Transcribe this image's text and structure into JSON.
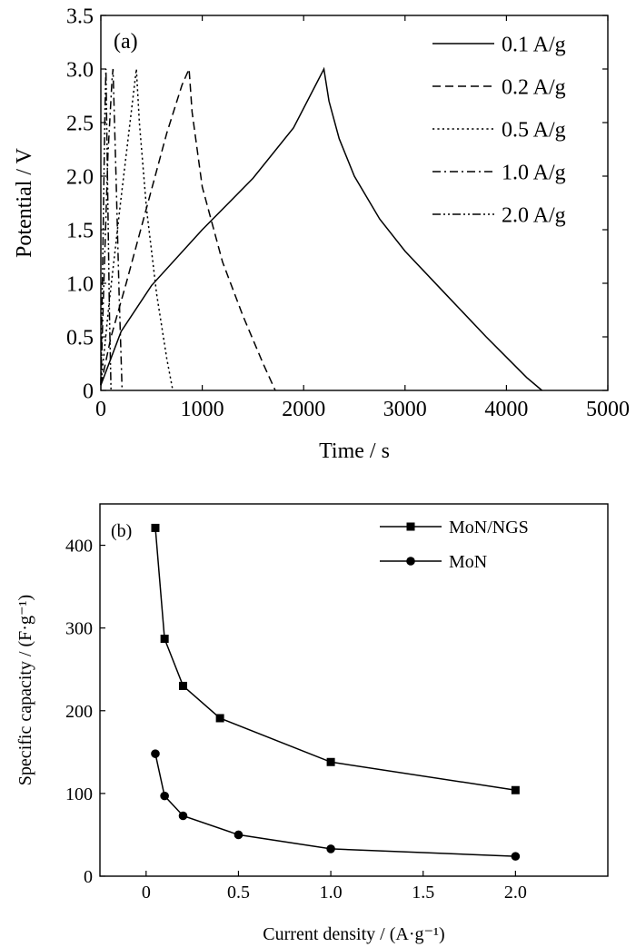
{
  "chart_data": [
    {
      "type": "line",
      "panel_label": "(a)",
      "xlabel": "Time / s",
      "ylabel": "Potential / V",
      "xlim": [
        0,
        5000
      ],
      "ylim": [
        0,
        3.5
      ],
      "x_ticks": [
        "0",
        "1000",
        "2000",
        "3000",
        "4000",
        "5000"
      ],
      "y_ticks": [
        "0",
        "0.5",
        "1.0",
        "1.5",
        "2.0",
        "2.5",
        "3.0",
        "3.5"
      ],
      "legend_position": "top-right",
      "series": [
        {
          "name": "0.1 A/g",
          "dash": "solid",
          "x": [
            0,
            200,
            500,
            1000,
            1500,
            1900,
            2200,
            2250,
            2350,
            2500,
            2750,
            3000,
            3400,
            3800,
            4200,
            4350
          ],
          "y": [
            0.05,
            0.55,
            0.98,
            1.5,
            1.98,
            2.45,
            3.0,
            2.7,
            2.35,
            2.0,
            1.6,
            1.3,
            0.9,
            0.5,
            0.12,
            0.0
          ]
        },
        {
          "name": "0.2 A/g",
          "dash": "dashed",
          "x": [
            0,
            100,
            250,
            450,
            650,
            800,
            870,
            900,
            1000,
            1200,
            1400,
            1600,
            1720
          ],
          "y": [
            0.05,
            0.5,
            1.0,
            1.7,
            2.4,
            2.85,
            3.0,
            2.6,
            1.9,
            1.2,
            0.7,
            0.25,
            0.0
          ]
        },
        {
          "name": "0.5 A/g",
          "dash": "dotted",
          "x": [
            0,
            80,
            200,
            300,
            350,
            380,
            450,
            550,
            650,
            710
          ],
          "y": [
            0.05,
            0.8,
            1.8,
            2.6,
            3.0,
            2.5,
            1.7,
            0.9,
            0.3,
            0.0
          ]
        },
        {
          "name": "1.0 A/g",
          "dash": "dash-dot",
          "x": [
            0,
            30,
            70,
            110,
            120,
            150,
            180,
            210
          ],
          "y": [
            0.05,
            1.0,
            2.2,
            2.9,
            3.0,
            2.0,
            0.9,
            0.0
          ]
        },
        {
          "name": "2.0 A/g",
          "dash": "dash-dot-dot",
          "x": [
            0,
            20,
            40,
            50,
            55,
            70,
            85,
            100
          ],
          "y": [
            0.05,
            1.3,
            2.6,
            3.0,
            2.7,
            1.7,
            0.7,
            0.0
          ]
        }
      ]
    },
    {
      "type": "line",
      "panel_label": "(b)",
      "xlabel": "Current density / (A·g⁻¹)",
      "ylabel": "Specific capacity / (F·g⁻¹)",
      "xlim": [
        -0.25,
        2.5
      ],
      "ylim": [
        0,
        450
      ],
      "x_ticks": [
        "0",
        "0.5",
        "1.0",
        "1.5",
        "2.0"
      ],
      "y_ticks": [
        "0",
        "100",
        "200",
        "300",
        "400"
      ],
      "legend_position": "top-right",
      "series": [
        {
          "name": "MoN/NGS",
          "marker": "square",
          "x": [
            0.05,
            0.1,
            0.2,
            0.4,
            1.0,
            2.0
          ],
          "y": [
            421,
            287,
            230,
            191,
            138,
            104
          ]
        },
        {
          "name": "MoN",
          "marker": "circle",
          "x": [
            0.05,
            0.1,
            0.2,
            0.5,
            1.0,
            2.0
          ],
          "y": [
            148,
            97,
            73,
            50,
            33,
            24
          ]
        }
      ]
    }
  ]
}
